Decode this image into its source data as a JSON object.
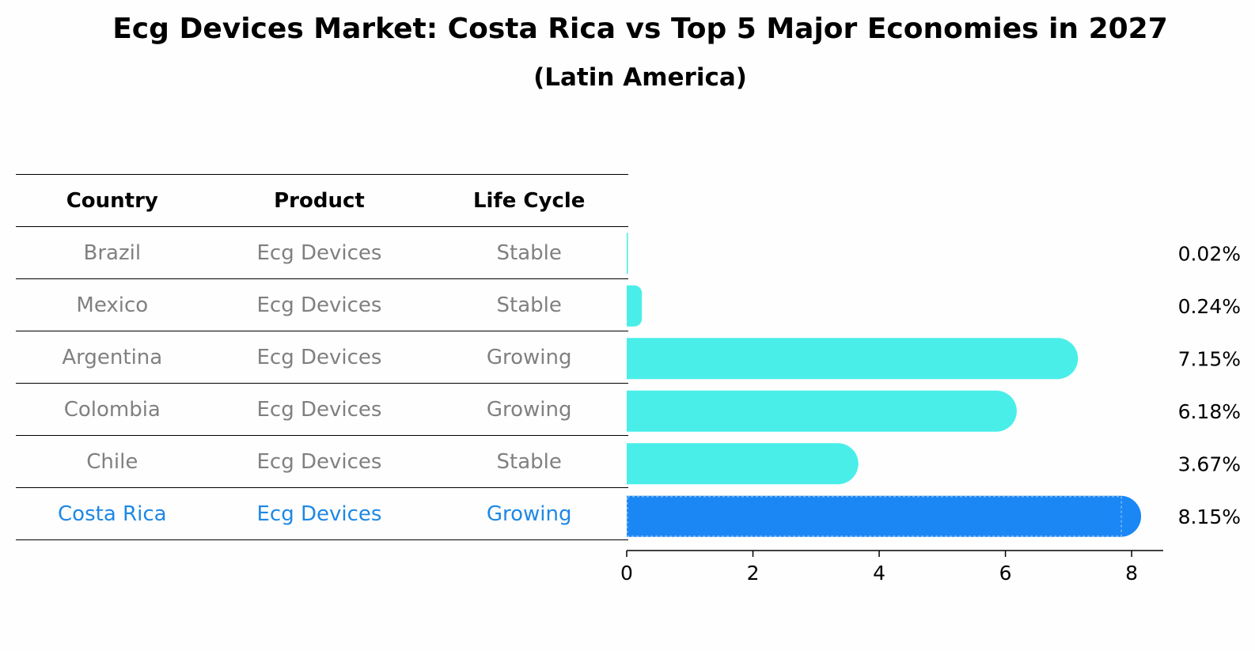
{
  "title": "Ecg Devices Market: Costa Rica vs Top 5 Major Economies in 2027",
  "subtitle": "(Latin America)",
  "table": {
    "headers": [
      "Country",
      "Product",
      "Life Cycle"
    ],
    "rows": [
      [
        "Brazil",
        "Ecg Devices",
        "Stable"
      ],
      [
        "Mexico",
        "Ecg Devices",
        "Stable"
      ],
      [
        "Argentina",
        "Ecg Devices",
        "Growing"
      ],
      [
        "Colombia",
        "Ecg Devices",
        "Growing"
      ],
      [
        "Chile",
        "Ecg Devices",
        "Stable"
      ],
      [
        "Costa Rica",
        "Ecg Devices",
        "Growing"
      ]
    ],
    "highlight_row": 5
  },
  "chart_data": {
    "type": "bar",
    "orientation": "horizontal",
    "categories": [
      "Brazil",
      "Mexico",
      "Argentina",
      "Colombia",
      "Chile",
      "Costa Rica"
    ],
    "values": [
      0.02,
      0.24,
      7.15,
      6.18,
      3.67,
      8.15
    ],
    "value_labels": [
      "0.02%",
      "0.24%",
      "7.15%",
      "6.18%",
      "3.67%",
      "8.15%"
    ],
    "xlim": [
      0,
      8.5
    ],
    "xticks": [
      0,
      2,
      4,
      6,
      8
    ],
    "tick_labels": [
      "0",
      "2",
      "4",
      "6",
      "8"
    ],
    "colors": {
      "default": "#4aeee9",
      "highlight": "#1a87f5"
    },
    "highlight_index": 5
  }
}
